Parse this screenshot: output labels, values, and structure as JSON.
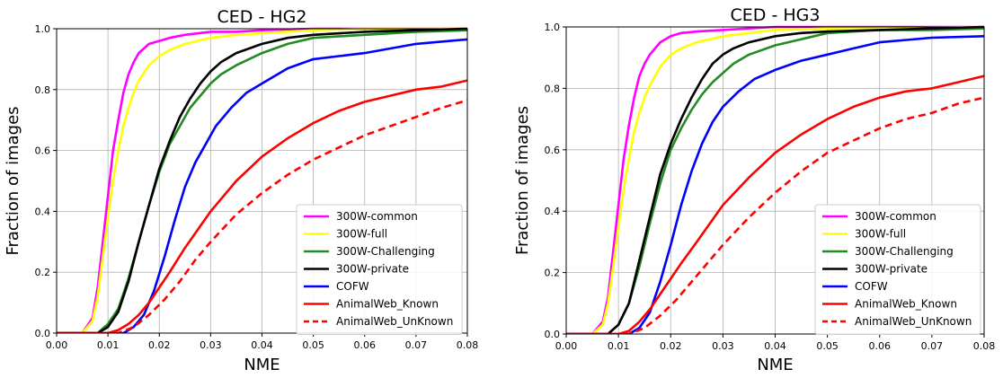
{
  "chart_data": [
    {
      "type": "line",
      "title": "CED - HG2",
      "xlabel": "NME",
      "ylabel": "Fraction of images",
      "xlim": [
        0.0,
        0.08
      ],
      "ylim": [
        0.0,
        1.0
      ],
      "xticks": [
        "0.00",
        "0.01",
        "0.02",
        "0.03",
        "0.04",
        "0.05",
        "0.06",
        "0.07",
        "0.08"
      ],
      "yticks": [
        "0.0",
        "0.2",
        "0.4",
        "0.6",
        "0.8",
        "1.0"
      ],
      "grid": true,
      "legend_position": "lower-right",
      "series": [
        {
          "name": "300W-common",
          "color": "#ff00ff",
          "dashed": false,
          "x": [
            0,
            0.005,
            0.007,
            0.008,
            0.009,
            0.01,
            0.011,
            0.012,
            0.013,
            0.014,
            0.015,
            0.016,
            0.018,
            0.02,
            0.022,
            0.025,
            0.03,
            0.035,
            0.04,
            0.05,
            0.06,
            0.08
          ],
          "y": [
            0,
            0,
            0.05,
            0.15,
            0.3,
            0.45,
            0.6,
            0.7,
            0.79,
            0.85,
            0.89,
            0.92,
            0.95,
            0.96,
            0.97,
            0.98,
            0.99,
            0.99,
            0.995,
            1.0,
            1.0,
            1.0
          ]
        },
        {
          "name": "300W-full",
          "color": "#ffff00",
          "dashed": false,
          "x": [
            0,
            0.005,
            0.007,
            0.008,
            0.009,
            0.01,
            0.011,
            0.012,
            0.013,
            0.014,
            0.015,
            0.016,
            0.018,
            0.02,
            0.022,
            0.025,
            0.03,
            0.035,
            0.04,
            0.05,
            0.06,
            0.08
          ],
          "y": [
            0,
            0,
            0.04,
            0.12,
            0.25,
            0.38,
            0.5,
            0.6,
            0.68,
            0.74,
            0.79,
            0.83,
            0.88,
            0.91,
            0.93,
            0.95,
            0.97,
            0.98,
            0.985,
            0.995,
            1.0,
            1.0
          ]
        },
        {
          "name": "300W-Challenging",
          "color": "#228b22",
          "dashed": false,
          "x": [
            0,
            0.008,
            0.01,
            0.012,
            0.014,
            0.016,
            0.018,
            0.02,
            0.022,
            0.024,
            0.026,
            0.028,
            0.03,
            0.032,
            0.035,
            0.04,
            0.045,
            0.05,
            0.06,
            0.07,
            0.08
          ],
          "y": [
            0,
            0,
            0.03,
            0.08,
            0.18,
            0.3,
            0.42,
            0.53,
            0.62,
            0.68,
            0.74,
            0.78,
            0.82,
            0.85,
            0.88,
            0.92,
            0.95,
            0.97,
            0.98,
            0.99,
            0.995
          ]
        },
        {
          "name": "300W-private",
          "color": "#000000",
          "dashed": false,
          "x": [
            0,
            0.008,
            0.01,
            0.012,
            0.014,
            0.016,
            0.018,
            0.02,
            0.022,
            0.024,
            0.026,
            0.028,
            0.03,
            0.032,
            0.035,
            0.04,
            0.045,
            0.05,
            0.06,
            0.07,
            0.08
          ],
          "y": [
            0,
            0,
            0.02,
            0.07,
            0.17,
            0.3,
            0.42,
            0.54,
            0.63,
            0.71,
            0.77,
            0.82,
            0.86,
            0.89,
            0.92,
            0.95,
            0.97,
            0.98,
            0.99,
            0.995,
            1.0
          ]
        },
        {
          "name": "COFW",
          "color": "#0000ff",
          "dashed": false,
          "x": [
            0,
            0.013,
            0.015,
            0.017,
            0.019,
            0.021,
            0.023,
            0.025,
            0.027,
            0.029,
            0.031,
            0.034,
            0.037,
            0.04,
            0.045,
            0.05,
            0.055,
            0.06,
            0.07,
            0.08
          ],
          "y": [
            0,
            0,
            0.02,
            0.06,
            0.14,
            0.25,
            0.37,
            0.48,
            0.56,
            0.62,
            0.68,
            0.74,
            0.79,
            0.82,
            0.87,
            0.9,
            0.91,
            0.92,
            0.95,
            0.965
          ]
        },
        {
          "name": "AnimalWeb_Known",
          "color": "#ff0000",
          "dashed": false,
          "x": [
            0,
            0.01,
            0.012,
            0.014,
            0.016,
            0.018,
            0.02,
            0.022,
            0.025,
            0.03,
            0.035,
            0.04,
            0.045,
            0.05,
            0.055,
            0.06,
            0.065,
            0.07,
            0.075,
            0.08
          ],
          "y": [
            0,
            0,
            0.01,
            0.03,
            0.06,
            0.1,
            0.15,
            0.2,
            0.28,
            0.4,
            0.5,
            0.58,
            0.64,
            0.69,
            0.73,
            0.76,
            0.78,
            0.8,
            0.81,
            0.83
          ]
        },
        {
          "name": "AnimalWeb_UnKnown",
          "color": "#ff0000",
          "dashed": true,
          "x": [
            0,
            0.012,
            0.015,
            0.018,
            0.021,
            0.024,
            0.027,
            0.03,
            0.035,
            0.04,
            0.045,
            0.05,
            0.055,
            0.06,
            0.065,
            0.07,
            0.075,
            0.08
          ],
          "y": [
            0,
            0,
            0.02,
            0.06,
            0.11,
            0.17,
            0.24,
            0.3,
            0.39,
            0.46,
            0.52,
            0.57,
            0.61,
            0.65,
            0.68,
            0.71,
            0.74,
            0.765
          ]
        }
      ]
    },
    {
      "type": "line",
      "title": "CED - HG3",
      "xlabel": "NME",
      "ylabel": "Fraction of images",
      "xlim": [
        0.0,
        0.08
      ],
      "ylim": [
        0.0,
        1.0
      ],
      "xticks": [
        "0.00",
        "0.01",
        "0.02",
        "0.03",
        "0.04",
        "0.05",
        "0.06",
        "0.07",
        "0.08"
      ],
      "yticks": [
        "0.0",
        "0.2",
        "0.4",
        "0.6",
        "0.8",
        "1.0"
      ],
      "grid": true,
      "legend_position": "lower-right",
      "series": [
        {
          "name": "300W-common",
          "color": "#ff00ff",
          "dashed": false,
          "x": [
            0,
            0.005,
            0.007,
            0.008,
            0.009,
            0.01,
            0.011,
            0.012,
            0.013,
            0.014,
            0.015,
            0.016,
            0.018,
            0.02,
            0.022,
            0.025,
            0.03,
            0.035,
            0.04,
            0.05,
            0.08
          ],
          "y": [
            0,
            0,
            0.04,
            0.12,
            0.27,
            0.42,
            0.57,
            0.68,
            0.77,
            0.84,
            0.88,
            0.91,
            0.95,
            0.97,
            0.98,
            0.985,
            0.99,
            0.995,
            1.0,
            1.0,
            1.0
          ]
        },
        {
          "name": "300W-full",
          "color": "#ffff00",
          "dashed": false,
          "x": [
            0,
            0.005,
            0.007,
            0.008,
            0.009,
            0.01,
            0.011,
            0.012,
            0.013,
            0.014,
            0.015,
            0.016,
            0.018,
            0.02,
            0.022,
            0.025,
            0.03,
            0.035,
            0.04,
            0.05,
            0.08
          ],
          "y": [
            0,
            0,
            0.03,
            0.1,
            0.22,
            0.35,
            0.47,
            0.57,
            0.66,
            0.72,
            0.77,
            0.81,
            0.87,
            0.91,
            0.93,
            0.95,
            0.97,
            0.98,
            0.99,
            0.995,
            1.0
          ]
        },
        {
          "name": "300W-Challenging",
          "color": "#228b22",
          "dashed": false,
          "x": [
            0,
            0.008,
            0.01,
            0.012,
            0.014,
            0.016,
            0.018,
            0.02,
            0.022,
            0.024,
            0.026,
            0.028,
            0.03,
            0.032,
            0.035,
            0.04,
            0.045,
            0.05,
            0.06,
            0.07,
            0.08
          ],
          "y": [
            0,
            0,
            0.03,
            0.1,
            0.22,
            0.36,
            0.49,
            0.6,
            0.67,
            0.73,
            0.78,
            0.82,
            0.85,
            0.88,
            0.91,
            0.94,
            0.96,
            0.98,
            0.99,
            0.99,
            0.995
          ]
        },
        {
          "name": "300W-private",
          "color": "#000000",
          "dashed": false,
          "x": [
            0,
            0.008,
            0.01,
            0.012,
            0.014,
            0.016,
            0.018,
            0.02,
            0.022,
            0.024,
            0.026,
            0.028,
            0.03,
            0.032,
            0.035,
            0.04,
            0.045,
            0.05,
            0.06,
            0.07,
            0.08
          ],
          "y": [
            0,
            0,
            0.03,
            0.1,
            0.24,
            0.38,
            0.52,
            0.62,
            0.7,
            0.77,
            0.83,
            0.88,
            0.91,
            0.93,
            0.95,
            0.97,
            0.98,
            0.985,
            0.99,
            0.995,
            1.0
          ]
        },
        {
          "name": "COFW",
          "color": "#0000ff",
          "dashed": false,
          "x": [
            0,
            0.012,
            0.014,
            0.016,
            0.018,
            0.02,
            0.022,
            0.024,
            0.026,
            0.028,
            0.03,
            0.033,
            0.036,
            0.04,
            0.045,
            0.05,
            0.055,
            0.06,
            0.07,
            0.08
          ],
          "y": [
            0,
            0,
            0.02,
            0.07,
            0.17,
            0.29,
            0.42,
            0.53,
            0.62,
            0.69,
            0.74,
            0.79,
            0.83,
            0.86,
            0.89,
            0.91,
            0.93,
            0.95,
            0.965,
            0.97
          ]
        },
        {
          "name": "AnimalWeb_Known",
          "color": "#ff0000",
          "dashed": false,
          "x": [
            0,
            0.01,
            0.012,
            0.014,
            0.016,
            0.018,
            0.02,
            0.022,
            0.025,
            0.03,
            0.035,
            0.04,
            0.045,
            0.05,
            0.055,
            0.06,
            0.065,
            0.07,
            0.075,
            0.08
          ],
          "y": [
            0,
            0,
            0.01,
            0.04,
            0.08,
            0.13,
            0.18,
            0.23,
            0.3,
            0.42,
            0.51,
            0.59,
            0.65,
            0.7,
            0.74,
            0.77,
            0.79,
            0.8,
            0.82,
            0.84
          ]
        },
        {
          "name": "AnimalWeb_UnKnown",
          "color": "#ff0000",
          "dashed": true,
          "x": [
            0,
            0.012,
            0.015,
            0.018,
            0.021,
            0.024,
            0.027,
            0.03,
            0.035,
            0.04,
            0.045,
            0.05,
            0.055,
            0.06,
            0.065,
            0.07,
            0.075,
            0.08
          ],
          "y": [
            0,
            0,
            0.02,
            0.06,
            0.11,
            0.17,
            0.23,
            0.29,
            0.38,
            0.46,
            0.53,
            0.59,
            0.63,
            0.67,
            0.7,
            0.72,
            0.75,
            0.77
          ]
        }
      ]
    }
  ]
}
